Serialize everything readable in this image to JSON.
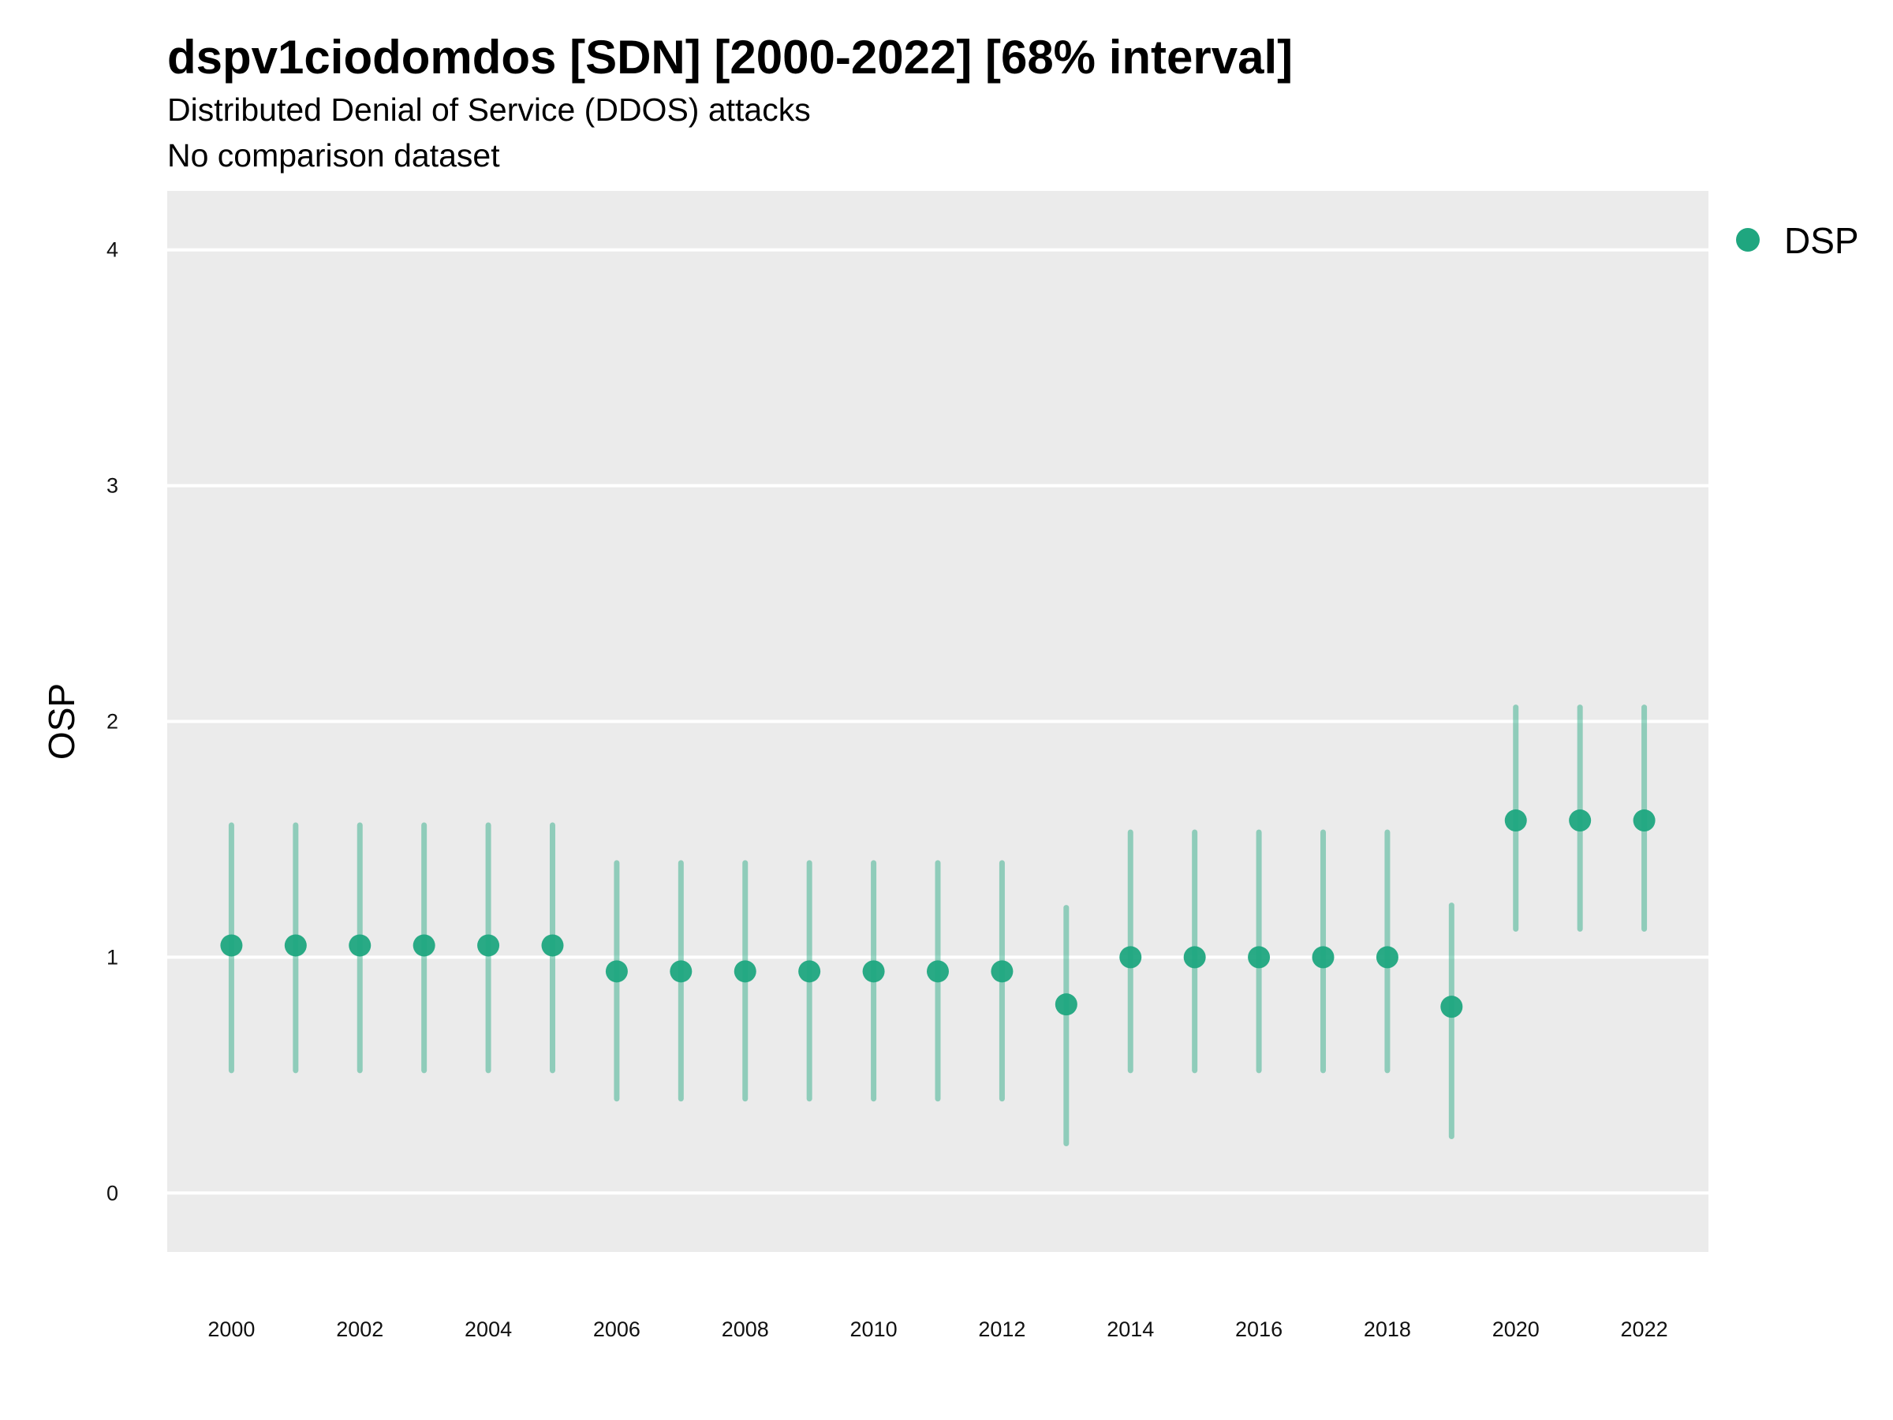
{
  "chart_data": {
    "type": "scatter",
    "title": "dspv1ciodomdos [SDN] [2000-2022] [68% interval]",
    "subtitle": "Distributed Denial of Service (DDOS) attacks",
    "caption": "No comparison dataset",
    "xlabel": "",
    "ylabel": "OSP",
    "xlim": [
      1999,
      2023
    ],
    "ylim": [
      -0.25,
      4.25
    ],
    "x_ticks": [
      2000,
      2002,
      2004,
      2006,
      2008,
      2010,
      2012,
      2014,
      2016,
      2018,
      2020,
      2022
    ],
    "y_ticks": [
      0,
      1,
      2,
      3,
      4
    ],
    "grid": true,
    "legend_position": "right",
    "series": [
      {
        "name": "DSP",
        "color": "#1fa67f",
        "x": [
          2000,
          2001,
          2002,
          2003,
          2004,
          2005,
          2006,
          2007,
          2008,
          2009,
          2010,
          2011,
          2012,
          2013,
          2014,
          2015,
          2016,
          2017,
          2018,
          2019,
          2020,
          2021,
          2022
        ],
        "y": [
          1.05,
          1.05,
          1.05,
          1.05,
          1.05,
          1.05,
          0.94,
          0.94,
          0.94,
          0.94,
          0.94,
          0.94,
          0.94,
          0.8,
          1.0,
          1.0,
          1.0,
          1.0,
          1.0,
          0.79,
          1.58,
          1.58,
          1.58
        ],
        "lower": [
          0.52,
          0.52,
          0.52,
          0.52,
          0.52,
          0.52,
          0.4,
          0.4,
          0.4,
          0.4,
          0.4,
          0.4,
          0.4,
          0.21,
          0.52,
          0.52,
          0.52,
          0.52,
          0.52,
          0.24,
          1.12,
          1.12,
          1.12
        ],
        "upper": [
          1.56,
          1.56,
          1.56,
          1.56,
          1.56,
          1.56,
          1.4,
          1.4,
          1.4,
          1.4,
          1.4,
          1.4,
          1.4,
          1.21,
          1.53,
          1.53,
          1.53,
          1.53,
          1.53,
          1.22,
          2.06,
          2.06,
          2.06
        ]
      }
    ]
  }
}
